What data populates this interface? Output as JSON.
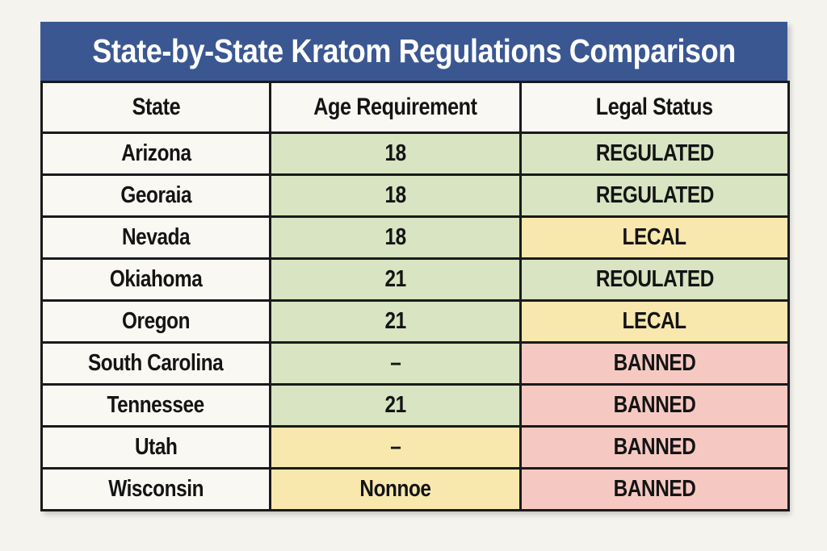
{
  "title": "State-by-State Kratom Regulations Comparison",
  "colors": {
    "header_blue": "#3a5792",
    "title_text": "#ffffff",
    "cell_white": "#f9f8f3",
    "green": "#d8e4c2",
    "yellow": "#f8e8ae",
    "red": "#f5c9c2",
    "border": "#1a1a1a",
    "page_background": "#f4f3ee"
  },
  "table": {
    "columns": [
      "State",
      "Age Requirement",
      "Legal Status"
    ],
    "rows": [
      {
        "state": "Arizona",
        "age": "18",
        "age_color": "green",
        "status": "REGULATED",
        "status_color": "green"
      },
      {
        "state": "Georaia",
        "age": "18",
        "age_color": "green",
        "status": "REGULATED",
        "status_color": "green"
      },
      {
        "state": "Nevada",
        "age": "18",
        "age_color": "green",
        "status": "LECAL",
        "status_color": "yellow"
      },
      {
        "state": "Okiahoma",
        "age": "21",
        "age_color": "green",
        "status": "REOULATED",
        "status_color": "green"
      },
      {
        "state": "Oregon",
        "age": "21",
        "age_color": "green",
        "status": "LECAL",
        "status_color": "yellow"
      },
      {
        "state": "South Carolina",
        "age": "–",
        "age_color": "green",
        "status": "BANNED",
        "status_color": "red"
      },
      {
        "state": "Tennessee",
        "age": "21",
        "age_color": "green",
        "status": "BANNED",
        "status_color": "red"
      },
      {
        "state": "Utah",
        "age": "–",
        "age_color": "yellow",
        "status": "BANNED",
        "status_color": "red"
      },
      {
        "state": "Wisconsin",
        "age": "Nonnoe",
        "age_color": "yellow",
        "status": "BANNED",
        "status_color": "red"
      }
    ]
  },
  "chart_data": {
    "type": "table",
    "title": "State-by-State Kratom Regulations Comparison",
    "columns": [
      "State",
      "Age Requirement",
      "Legal Status"
    ],
    "rows": [
      [
        "Arizona",
        "18",
        "REGULATED"
      ],
      [
        "Georaia",
        "18",
        "REGULATED"
      ],
      [
        "Nevada",
        "18",
        "LECAL"
      ],
      [
        "Okiahoma",
        "21",
        "REOULATED"
      ],
      [
        "Oregon",
        "21",
        "LECAL"
      ],
      [
        "South Carolina",
        "–",
        "BANNED"
      ],
      [
        "Tennessee",
        "21",
        "BANNED"
      ],
      [
        "Utah",
        "–",
        "BANNED"
      ],
      [
        "Wisconsin",
        "Nonnoe",
        "BANNED"
      ]
    ],
    "status_color_legend": {
      "REGULATED": "green",
      "LECAL": "yellow",
      "REOULATED": "green",
      "BANNED": "red"
    }
  }
}
